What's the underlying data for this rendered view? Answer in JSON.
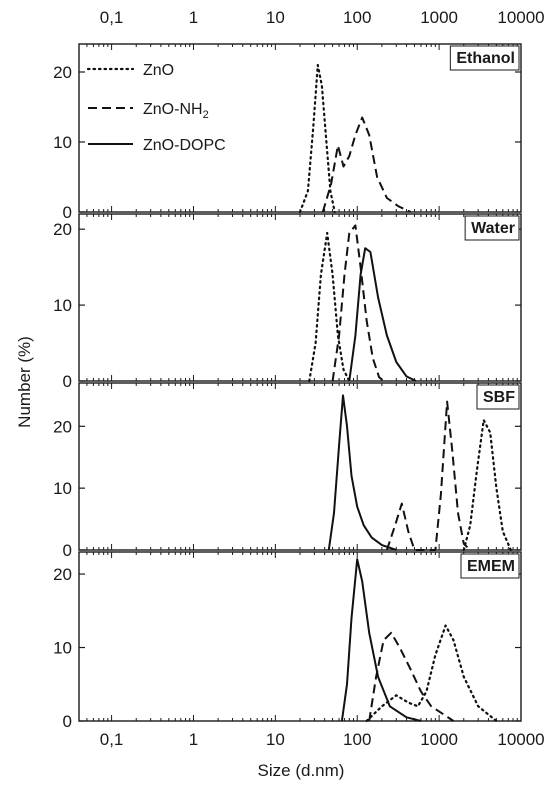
{
  "chart_data": {
    "type": "line",
    "x_scale": "log",
    "xlim": [
      0.04,
      10000
    ],
    "xlabel": "Size (d.nm)",
    "ylabel": "Number (%)",
    "x_tick_labels": [
      "0,1",
      "1",
      "10",
      "100",
      "1000",
      "10000"
    ],
    "x_tick_values": [
      0.1,
      1,
      10,
      100,
      1000,
      10000
    ],
    "legend": {
      "position": "top-left of first panel",
      "entries": [
        {
          "name": "ZnO",
          "style": "dotted"
        },
        {
          "name": "ZnO-NH",
          "subscript": "2",
          "style": "dashed"
        },
        {
          "name": "ZnO-DOPC",
          "style": "solid"
        }
      ]
    },
    "panels": [
      {
        "label": "Ethanol",
        "ylim": [
          0,
          24
        ],
        "yticks": [
          "0",
          "10",
          "20"
        ],
        "series": [
          {
            "name": "ZnO",
            "style": "dotted",
            "points": [
              [
                20,
                0
              ],
              [
                25,
                3
              ],
              [
                29,
                12
              ],
              [
                33,
                21
              ],
              [
                37,
                18
              ],
              [
                42,
                10
              ],
              [
                47,
                3
              ],
              [
                53,
                0
              ]
            ]
          },
          {
            "name": "ZnO-NH2",
            "style": "dashed",
            "points": [
              [
                38,
                0
              ],
              [
                48,
                4
              ],
              [
                58,
                9.5
              ],
              [
                68,
                6.5
              ],
              [
                80,
                8
              ],
              [
                95,
                11
              ],
              [
                115,
                13.5
              ],
              [
                140,
                11
              ],
              [
                175,
                5
              ],
              [
                230,
                2
              ],
              [
                320,
                0.8
              ],
              [
                450,
                0
              ]
            ]
          },
          {
            "name": "ZnO-DOPC",
            "style": "solid",
            "points": []
          }
        ]
      },
      {
        "label": "Water",
        "ylim": [
          0,
          22
        ],
        "yticks": [
          "0",
          "10",
          "20"
        ],
        "series": [
          {
            "name": "ZnO",
            "style": "dotted",
            "points": [
              [
                26,
                0
              ],
              [
                31,
                5
              ],
              [
                36,
                14
              ],
              [
                43,
                19.5
              ],
              [
                50,
                14
              ],
              [
                58,
                6
              ],
              [
                68,
                1.5
              ],
              [
                80,
                0
              ]
            ]
          },
          {
            "name": "ZnO-NH2",
            "style": "dashed",
            "points": [
              [
                50,
                0
              ],
              [
                60,
                6
              ],
              [
                70,
                14
              ],
              [
                80,
                19.5
              ],
              [
                95,
                20.5
              ],
              [
                110,
                15
              ],
              [
                130,
                8
              ],
              [
                155,
                3
              ],
              [
                185,
                0.5
              ],
              [
                210,
                0
              ]
            ]
          },
          {
            "name": "ZnO-DOPC",
            "style": "solid",
            "points": [
              [
                80,
                0
              ],
              [
                95,
                6
              ],
              [
                110,
                14
              ],
              [
                125,
                17.5
              ],
              [
                145,
                17
              ],
              [
                180,
                11
              ],
              [
                230,
                6
              ],
              [
                300,
                2.5
              ],
              [
                400,
                0.6
              ],
              [
                520,
                0
              ]
            ]
          }
        ]
      },
      {
        "label": "SBF",
        "ylim": [
          0,
          27
        ],
        "yticks": [
          "0",
          "10",
          "20"
        ],
        "series": [
          {
            "name": "ZnO",
            "style": "dotted",
            "points": [
              [
                2000,
                0
              ],
              [
                2400,
                4
              ],
              [
                2900,
                13
              ],
              [
                3500,
                21
              ],
              [
                4200,
                19
              ],
              [
                5000,
                10
              ],
              [
                6000,
                3
              ],
              [
                7500,
                0
              ]
            ]
          },
          {
            "name": "ZnO-NH2",
            "style": "dashed",
            "points": [
              [
                230,
                0
              ],
              [
                290,
                4
              ],
              [
                350,
                7.5
              ],
              [
                420,
                3
              ],
              [
                500,
                0
              ],
              [
                900,
                0
              ],
              [
                1050,
                9
              ],
              [
                1250,
                24
              ],
              [
                1450,
                16
              ],
              [
                1700,
                6
              ],
              [
                2000,
                1
              ],
              [
                2400,
                0
              ]
            ]
          },
          {
            "name": "ZnO-DOPC",
            "style": "solid",
            "points": [
              [
                45,
                0
              ],
              [
                52,
                6
              ],
              [
                60,
                17
              ],
              [
                67,
                25
              ],
              [
                75,
                20
              ],
              [
                85,
                12
              ],
              [
                100,
                7
              ],
              [
                120,
                4
              ],
              [
                150,
                2
              ],
              [
                200,
                0.8
              ],
              [
                300,
                0
              ]
            ]
          }
        ]
      },
      {
        "label": "EMEM",
        "ylim": [
          0,
          23
        ],
        "yticks": [
          "0",
          "10",
          "20"
        ],
        "series": [
          {
            "name": "ZnO",
            "style": "dotted",
            "points": [
              [
                130,
                0
              ],
              [
                200,
                2
              ],
              [
                300,
                3.5
              ],
              [
                420,
                2.5
              ],
              [
                550,
                2
              ],
              [
                700,
                4
              ],
              [
                900,
                9
              ],
              [
                1200,
                13
              ],
              [
                1500,
                11
              ],
              [
                2000,
                6
              ],
              [
                3000,
                2
              ],
              [
                5000,
                0
              ]
            ]
          },
          {
            "name": "ZnO-NH2",
            "style": "dashed",
            "points": [
              [
                140,
                0
              ],
              [
                170,
                6
              ],
              [
                210,
                11
              ],
              [
                260,
                12
              ],
              [
                330,
                10
              ],
              [
                450,
                7
              ],
              [
                600,
                4
              ],
              [
                800,
                2
              ],
              [
                1100,
                1
              ],
              [
                1500,
                0
              ]
            ]
          },
          {
            "name": "ZnO-DOPC",
            "style": "solid",
            "points": [
              [
                65,
                0
              ],
              [
                75,
                5
              ],
              [
                85,
                14
              ],
              [
                100,
                22
              ],
              [
                115,
                19
              ],
              [
                140,
                12
              ],
              [
                180,
                6
              ],
              [
                250,
                2
              ],
              [
                400,
                0.5
              ],
              [
                600,
                0
              ]
            ]
          }
        ]
      }
    ]
  }
}
